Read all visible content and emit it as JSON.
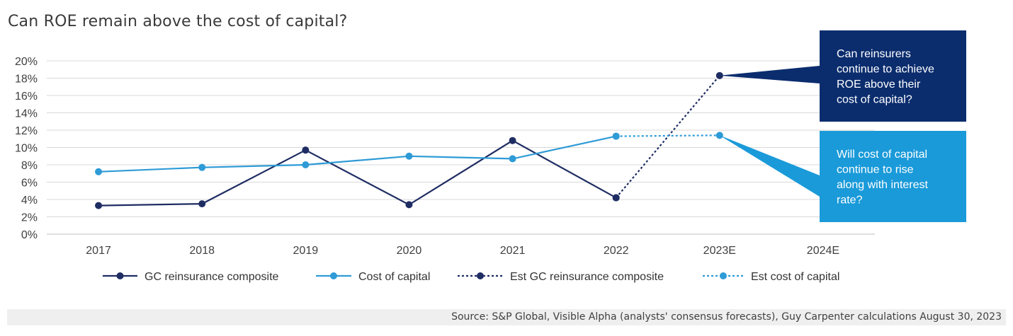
{
  "title": "Can ROE remain above the cost of capital?",
  "source": "Source: S&P Global, Visible Alpha (analysts' consensus forecasts), Guy Carpenter calculations August 30, 2023",
  "colors": {
    "composite": "#1f2d63",
    "cost": "#2e9bd6",
    "callout_dark": "#0b2d6e",
    "callout_light": "#1a9ad9",
    "grid": "#d9d9d9",
    "source_bg": "#efefef"
  },
  "chart_data": {
    "type": "line",
    "categories": [
      "2017",
      "2018",
      "2019",
      "2020",
      "2021",
      "2022",
      "2023E",
      "2024E"
    ],
    "ylim": [
      0,
      20
    ],
    "yticks": [
      "0%",
      "2%",
      "4%",
      "6%",
      "8%",
      "10%",
      "12%",
      "14%",
      "16%",
      "18%",
      "20%"
    ],
    "grid": true,
    "legend_position": "bottom",
    "series": [
      {
        "name": "GC reinsurance composite",
        "style": "solid",
        "color": "#1f2d63",
        "values": [
          3.3,
          3.5,
          9.7,
          3.4,
          10.8,
          4.2,
          null,
          null
        ]
      },
      {
        "name": "Cost of capital",
        "style": "solid",
        "color": "#2e9bd6",
        "values": [
          7.2,
          7.7,
          8.0,
          9.0,
          8.7,
          11.3,
          null,
          null
        ]
      },
      {
        "name": "Est GC reinsurance composite",
        "style": "dotted",
        "color": "#1f2d63",
        "values": [
          null,
          null,
          null,
          null,
          null,
          4.2,
          18.3,
          null
        ]
      },
      {
        "name": "Est cost of capital",
        "style": "dotted",
        "color": "#2e9bd6",
        "values": [
          null,
          null,
          null,
          null,
          null,
          11.3,
          11.4,
          null
        ]
      }
    ],
    "annotations": [
      {
        "text_lines": [
          "Can reinsurers",
          "continue to achieve",
          "ROE above their",
          "cost of capital?"
        ],
        "points_to": {
          "x": "2023E",
          "y": 18.3
        },
        "color": "#0b2d6e"
      },
      {
        "text_lines": [
          "Will cost of capital",
          "continue to rise",
          "along with interest",
          "rate?"
        ],
        "points_to": {
          "x": "2023E",
          "y": 11.4
        },
        "color": "#1a9ad9"
      }
    ]
  }
}
